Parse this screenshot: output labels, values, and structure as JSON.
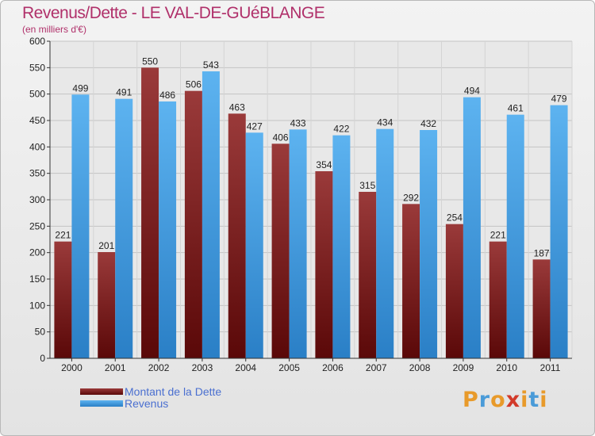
{
  "title": "Revenus/Dette - LE VAL-DE-GUéBLANGE",
  "subtitle": "(en milliers d'€)",
  "legend": [
    {
      "label": "Montant de la Dette",
      "color": "#7a1f1f"
    },
    {
      "label": "Revenus",
      "color": "#4aa3e6"
    }
  ],
  "logo": "Proxiti",
  "chart_data": {
    "type": "bar",
    "categories": [
      "2000",
      "2001",
      "2002",
      "2003",
      "2004",
      "2005",
      "2006",
      "2007",
      "2008",
      "2009",
      "2010",
      "2011"
    ],
    "series": [
      {
        "name": "Montant de la Dette",
        "values": [
          221,
          201,
          550,
          506,
          463,
          406,
          354,
          315,
          292,
          254,
          221,
          187
        ],
        "color": "#7a1f1f"
      },
      {
        "name": "Revenus",
        "values": [
          499,
          491,
          486,
          543,
          427,
          433,
          422,
          434,
          432,
          494,
          461,
          479
        ],
        "color": "#4aa3e6"
      }
    ],
    "ylim": [
      0,
      600
    ],
    "yticks": [
      0,
      50,
      100,
      150,
      200,
      250,
      300,
      350,
      400,
      450,
      500,
      550,
      600
    ],
    "grid": true,
    "legend_position": "bottom-left"
  }
}
